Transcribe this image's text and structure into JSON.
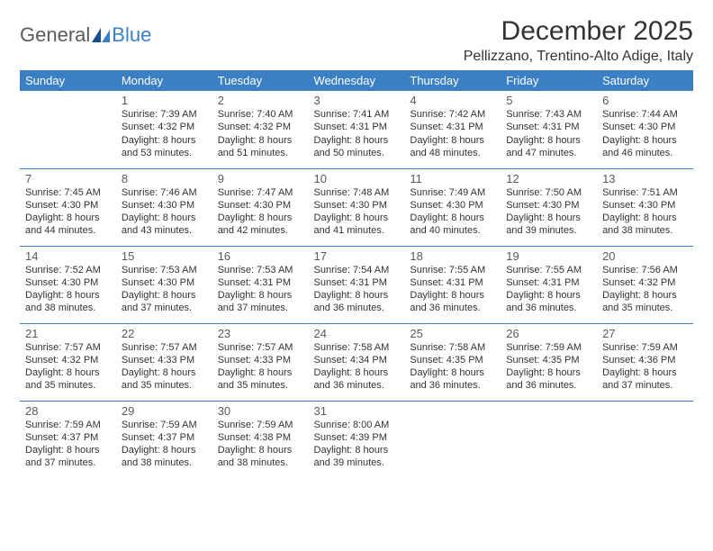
{
  "logo": {
    "text1": "General",
    "text2": "Blue"
  },
  "title": "December 2025",
  "location": "Pellizzano, Trentino-Alto Adige, Italy",
  "colors": {
    "header_bg": "#3b7fc4",
    "header_text": "#ffffff",
    "border": "#3b7fc4",
    "body_text": "#333333",
    "daynum": "#5a5a5a",
    "logo_gray": "#5a5a5a",
    "logo_blue": "#3b7fc4",
    "background": "#ffffff"
  },
  "day_headers": [
    "Sunday",
    "Monday",
    "Tuesday",
    "Wednesday",
    "Thursday",
    "Friday",
    "Saturday"
  ],
  "weeks": [
    [
      null,
      {
        "n": "1",
        "sr": "Sunrise: 7:39 AM",
        "ss": "Sunset: 4:32 PM",
        "dl": "Daylight: 8 hours and 53 minutes."
      },
      {
        "n": "2",
        "sr": "Sunrise: 7:40 AM",
        "ss": "Sunset: 4:32 PM",
        "dl": "Daylight: 8 hours and 51 minutes."
      },
      {
        "n": "3",
        "sr": "Sunrise: 7:41 AM",
        "ss": "Sunset: 4:31 PM",
        "dl": "Daylight: 8 hours and 50 minutes."
      },
      {
        "n": "4",
        "sr": "Sunrise: 7:42 AM",
        "ss": "Sunset: 4:31 PM",
        "dl": "Daylight: 8 hours and 48 minutes."
      },
      {
        "n": "5",
        "sr": "Sunrise: 7:43 AM",
        "ss": "Sunset: 4:31 PM",
        "dl": "Daylight: 8 hours and 47 minutes."
      },
      {
        "n": "6",
        "sr": "Sunrise: 7:44 AM",
        "ss": "Sunset: 4:30 PM",
        "dl": "Daylight: 8 hours and 46 minutes."
      }
    ],
    [
      {
        "n": "7",
        "sr": "Sunrise: 7:45 AM",
        "ss": "Sunset: 4:30 PM",
        "dl": "Daylight: 8 hours and 44 minutes."
      },
      {
        "n": "8",
        "sr": "Sunrise: 7:46 AM",
        "ss": "Sunset: 4:30 PM",
        "dl": "Daylight: 8 hours and 43 minutes."
      },
      {
        "n": "9",
        "sr": "Sunrise: 7:47 AM",
        "ss": "Sunset: 4:30 PM",
        "dl": "Daylight: 8 hours and 42 minutes."
      },
      {
        "n": "10",
        "sr": "Sunrise: 7:48 AM",
        "ss": "Sunset: 4:30 PM",
        "dl": "Daylight: 8 hours and 41 minutes."
      },
      {
        "n": "11",
        "sr": "Sunrise: 7:49 AM",
        "ss": "Sunset: 4:30 PM",
        "dl": "Daylight: 8 hours and 40 minutes."
      },
      {
        "n": "12",
        "sr": "Sunrise: 7:50 AM",
        "ss": "Sunset: 4:30 PM",
        "dl": "Daylight: 8 hours and 39 minutes."
      },
      {
        "n": "13",
        "sr": "Sunrise: 7:51 AM",
        "ss": "Sunset: 4:30 PM",
        "dl": "Daylight: 8 hours and 38 minutes."
      }
    ],
    [
      {
        "n": "14",
        "sr": "Sunrise: 7:52 AM",
        "ss": "Sunset: 4:30 PM",
        "dl": "Daylight: 8 hours and 38 minutes."
      },
      {
        "n": "15",
        "sr": "Sunrise: 7:53 AM",
        "ss": "Sunset: 4:30 PM",
        "dl": "Daylight: 8 hours and 37 minutes."
      },
      {
        "n": "16",
        "sr": "Sunrise: 7:53 AM",
        "ss": "Sunset: 4:31 PM",
        "dl": "Daylight: 8 hours and 37 minutes."
      },
      {
        "n": "17",
        "sr": "Sunrise: 7:54 AM",
        "ss": "Sunset: 4:31 PM",
        "dl": "Daylight: 8 hours and 36 minutes."
      },
      {
        "n": "18",
        "sr": "Sunrise: 7:55 AM",
        "ss": "Sunset: 4:31 PM",
        "dl": "Daylight: 8 hours and 36 minutes."
      },
      {
        "n": "19",
        "sr": "Sunrise: 7:55 AM",
        "ss": "Sunset: 4:31 PM",
        "dl": "Daylight: 8 hours and 36 minutes."
      },
      {
        "n": "20",
        "sr": "Sunrise: 7:56 AM",
        "ss": "Sunset: 4:32 PM",
        "dl": "Daylight: 8 hours and 35 minutes."
      }
    ],
    [
      {
        "n": "21",
        "sr": "Sunrise: 7:57 AM",
        "ss": "Sunset: 4:32 PM",
        "dl": "Daylight: 8 hours and 35 minutes."
      },
      {
        "n": "22",
        "sr": "Sunrise: 7:57 AM",
        "ss": "Sunset: 4:33 PM",
        "dl": "Daylight: 8 hours and 35 minutes."
      },
      {
        "n": "23",
        "sr": "Sunrise: 7:57 AM",
        "ss": "Sunset: 4:33 PM",
        "dl": "Daylight: 8 hours and 35 minutes."
      },
      {
        "n": "24",
        "sr": "Sunrise: 7:58 AM",
        "ss": "Sunset: 4:34 PM",
        "dl": "Daylight: 8 hours and 36 minutes."
      },
      {
        "n": "25",
        "sr": "Sunrise: 7:58 AM",
        "ss": "Sunset: 4:35 PM",
        "dl": "Daylight: 8 hours and 36 minutes."
      },
      {
        "n": "26",
        "sr": "Sunrise: 7:59 AM",
        "ss": "Sunset: 4:35 PM",
        "dl": "Daylight: 8 hours and 36 minutes."
      },
      {
        "n": "27",
        "sr": "Sunrise: 7:59 AM",
        "ss": "Sunset: 4:36 PM",
        "dl": "Daylight: 8 hours and 37 minutes."
      }
    ],
    [
      {
        "n": "28",
        "sr": "Sunrise: 7:59 AM",
        "ss": "Sunset: 4:37 PM",
        "dl": "Daylight: 8 hours and 37 minutes."
      },
      {
        "n": "29",
        "sr": "Sunrise: 7:59 AM",
        "ss": "Sunset: 4:37 PM",
        "dl": "Daylight: 8 hours and 38 minutes."
      },
      {
        "n": "30",
        "sr": "Sunrise: 7:59 AM",
        "ss": "Sunset: 4:38 PM",
        "dl": "Daylight: 8 hours and 38 minutes."
      },
      {
        "n": "31",
        "sr": "Sunrise: 8:00 AM",
        "ss": "Sunset: 4:39 PM",
        "dl": "Daylight: 8 hours and 39 minutes."
      },
      null,
      null,
      null
    ]
  ]
}
